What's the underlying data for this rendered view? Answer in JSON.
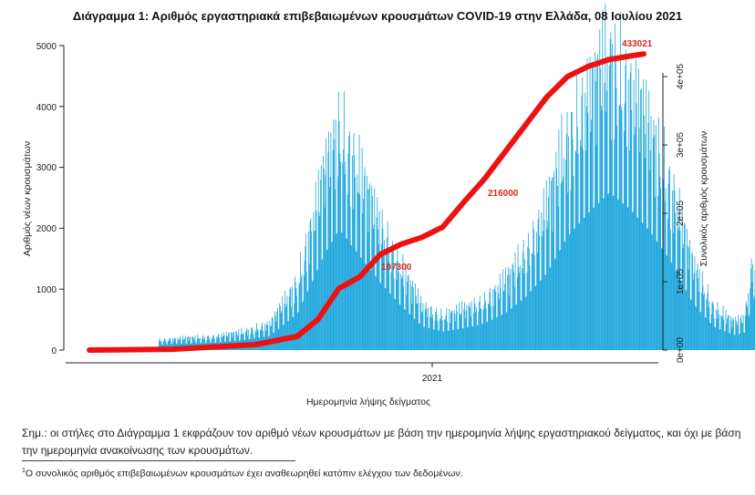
{
  "chart_data": {
    "type": "bar",
    "title": "Διάγραμμα 1: Αριθμός εργαστηριακά επιβεβαιωμένων κρουσμάτων COVID-19 στην Ελλάδα, 08 Ιουλίου 2021",
    "xlabel": "Ημερομηνία λήψης δείγματος",
    "ylabel": "Αριθμός νέων κρουσμάτων",
    "y2label": "Συνολικός αριθμός κρουσμάτων",
    "x_ticks": [
      "2021"
    ],
    "y_ticks": [
      "0",
      "1000",
      "2000",
      "3000",
      "4000",
      "5000"
    ],
    "y2_ticks": [
      "0e+00",
      "1e+05",
      "2e+05",
      "3e+05",
      "4e+05"
    ],
    "ylim": [
      0,
      5000
    ],
    "y2lim": [
      0,
      450000
    ],
    "colors": {
      "bars": "#1ea6dc",
      "cumulative": "#ee1111",
      "labels": "#d42a1e"
    },
    "series": [
      {
        "type": "bar",
        "description": "new cases per sample date (period averages)",
        "values": [
          [
            100,
            60
          ],
          [
            60,
            120
          ],
          [
            120,
            180
          ],
          [
            180,
            220
          ],
          [
            220,
            290
          ],
          [
            260,
            420
          ],
          [
            300,
            1100
          ],
          [
            340,
            2900
          ],
          [
            360,
            3600
          ],
          [
            390,
            2800
          ],
          [
            420,
            2000
          ],
          [
            450,
            1300
          ],
          [
            480,
            700
          ],
          [
            510,
            550
          ],
          [
            540,
            650
          ],
          [
            570,
            800
          ],
          [
            600,
            1100
          ],
          [
            630,
            1600
          ],
          [
            660,
            2300
          ],
          [
            690,
            3400
          ],
          [
            720,
            4100
          ],
          [
            750,
            4700
          ],
          [
            780,
            4200
          ],
          [
            810,
            3500
          ],
          [
            840,
            2600
          ],
          [
            870,
            1400
          ],
          [
            900,
            700
          ],
          [
            930,
            450
          ],
          [
            945,
            520
          ],
          [
            960,
            1700
          ],
          [
            970,
            520
          ]
        ]
      },
      {
        "type": "line",
        "name": "Συνολικός αριθμός κρουσμάτων",
        "values": [
          [
            0,
            0
          ],
          [
            120,
            1200
          ],
          [
            240,
            8000
          ],
          [
            300,
            20000
          ],
          [
            330,
            45000
          ],
          [
            360,
            90000
          ],
          [
            390,
            107000
          ],
          [
            420,
            140000
          ],
          [
            450,
            155000
          ],
          [
            480,
            165000
          ],
          [
            510,
            180000
          ],
          [
            540,
            216000
          ],
          [
            570,
            250000
          ],
          [
            600,
            290000
          ],
          [
            630,
            330000
          ],
          [
            660,
            370000
          ],
          [
            690,
            400000
          ],
          [
            720,
            415000
          ],
          [
            750,
            425000
          ],
          [
            780,
            430000
          ],
          [
            800,
            433021
          ]
        ]
      }
    ],
    "milestones": [
      {
        "label": "107300",
        "value": 107300
      },
      {
        "label": "216000",
        "value": 216000
      }
    ],
    "end_label": "433021",
    "grid": false,
    "legend": "none"
  },
  "note": {
    "text": "Σημ.: οι στήλες στο Διάγραμμα 1 εκφράζουν τον αριθμό νέων κρουσμάτων με βάση την ημερομηνία λήψης εργαστηριακού δείγματος, και όχι με βάση την ημερομηνία ανακοίνωσης των κρουσμάτων."
  },
  "footnote": {
    "mark": "1",
    "text": "Ο συνολικός αριθμός επιβεβαιωμένων κρουσμάτων έχει αναθεωρηθεί κατόπιν ελέγχου των δεδομένων."
  }
}
